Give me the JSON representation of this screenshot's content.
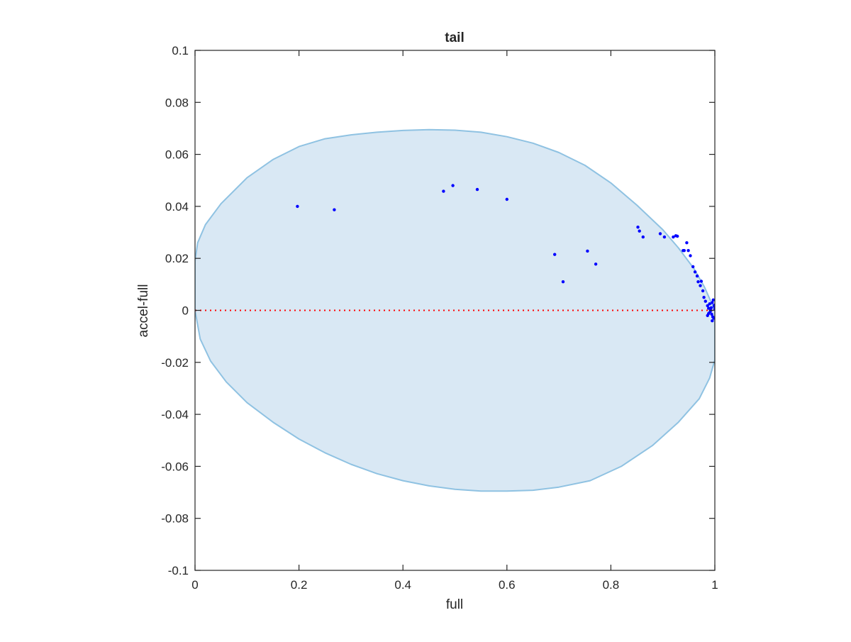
{
  "chart_data": {
    "type": "scatter",
    "title": "tail",
    "xlabel": "full",
    "ylabel": "accel-full",
    "xlim": [
      0,
      1
    ],
    "ylim": [
      -0.1,
      0.1
    ],
    "x_ticks": [
      0,
      0.2,
      0.4,
      0.6,
      0.8,
      1
    ],
    "x_tick_labels": [
      "0",
      "0.2",
      "0.4",
      "0.6",
      "0.8",
      "1"
    ],
    "y_ticks": [
      0.1,
      0.08,
      0.06,
      0.04,
      0.02,
      0,
      -0.02,
      -0.04,
      -0.06,
      -0.08,
      -0.1
    ],
    "y_tick_labels": [
      "0.1",
      "0.08",
      "0.06",
      "0.04",
      "0.02",
      "0",
      "-0.02",
      "-0.04",
      "-0.06",
      "-0.08",
      "-0.1"
    ],
    "grid": false,
    "colors": {
      "points": "#0000ff",
      "region_fill": "#d9e8f4",
      "region_edge": "#8fc2e2",
      "zero_line": "#ff0000",
      "axes": "#262626"
    },
    "region": {
      "description_type": "filled-closed-curve",
      "points": [
        [
          0,
          0.019
        ],
        [
          0.005,
          0.026
        ],
        [
          0.02,
          0.033
        ],
        [
          0.05,
          0.041
        ],
        [
          0.1,
          0.051
        ],
        [
          0.15,
          0.058
        ],
        [
          0.2,
          0.063
        ],
        [
          0.25,
          0.066
        ],
        [
          0.3,
          0.0675
        ],
        [
          0.35,
          0.0685
        ],
        [
          0.4,
          0.0692
        ],
        [
          0.45,
          0.0695
        ],
        [
          0.5,
          0.0693
        ],
        [
          0.55,
          0.0685
        ],
        [
          0.6,
          0.0668
        ],
        [
          0.65,
          0.0643
        ],
        [
          0.7,
          0.0607
        ],
        [
          0.75,
          0.0558
        ],
        [
          0.8,
          0.049
        ],
        [
          0.85,
          0.0405
        ],
        [
          0.9,
          0.031
        ],
        [
          0.93,
          0.024
        ],
        [
          0.96,
          0.016
        ],
        [
          0.98,
          0.009
        ],
        [
          1.0,
          0.0
        ],
        [
          1.0,
          -0.019
        ],
        [
          0.99,
          -0.026
        ],
        [
          0.97,
          -0.034
        ],
        [
          0.93,
          -0.043
        ],
        [
          0.88,
          -0.052
        ],
        [
          0.82,
          -0.06
        ],
        [
          0.76,
          -0.0655
        ],
        [
          0.7,
          -0.068
        ],
        [
          0.65,
          -0.0692
        ],
        [
          0.6,
          -0.0695
        ],
        [
          0.55,
          -0.0695
        ],
        [
          0.5,
          -0.0688
        ],
        [
          0.45,
          -0.0675
        ],
        [
          0.4,
          -0.0655
        ],
        [
          0.35,
          -0.0628
        ],
        [
          0.3,
          -0.0592
        ],
        [
          0.25,
          -0.0548
        ],
        [
          0.2,
          -0.0495
        ],
        [
          0.15,
          -0.043
        ],
        [
          0.1,
          -0.0355
        ],
        [
          0.06,
          -0.0275
        ],
        [
          0.03,
          -0.0195
        ],
        [
          0.01,
          -0.011
        ],
        [
          0,
          0.0
        ]
      ]
    },
    "zero_line": {
      "y": 0,
      "style": "dotted"
    },
    "series": [
      {
        "x": [
          0.197,
          0.268,
          0.478,
          0.496,
          0.543,
          0.6,
          0.692,
          0.708,
          0.755,
          0.771,
          0.852,
          0.855,
          0.862,
          0.895,
          0.903,
          0.92,
          0.925,
          0.928,
          0.939,
          0.941,
          0.946,
          0.949,
          0.953,
          0.958,
          0.962,
          0.966,
          0.968,
          0.972,
          0.974,
          0.977,
          0.979,
          0.982,
          0.986,
          0.988,
          0.99,
          0.991,
          0.993,
          0.994,
          0.995,
          0.996,
          0.997,
          0.998,
          0.999,
          1.0,
          0.999,
          0.995,
          0.992,
          0.988,
          0.986
        ],
        "y": [
          0.04,
          0.0387,
          0.0458,
          0.048,
          0.0465,
          0.0427,
          0.0215,
          0.011,
          0.0228,
          0.0178,
          0.032,
          0.0305,
          0.0282,
          0.0295,
          0.0282,
          0.0282,
          0.0287,
          0.0285,
          0.023,
          0.023,
          0.026,
          0.023,
          0.021,
          0.0168,
          0.0148,
          0.0132,
          0.011,
          0.0095,
          0.0112,
          0.0075,
          0.005,
          0.0035,
          0.0018,
          0.0008,
          0.0025,
          -0.0005,
          0.001,
          -0.0015,
          0.003,
          -0.0025,
          0.004,
          -0.003,
          0.0015,
          0.0005,
          0.002,
          -0.004,
          0.0,
          -0.0012,
          -0.002
        ]
      }
    ]
  }
}
